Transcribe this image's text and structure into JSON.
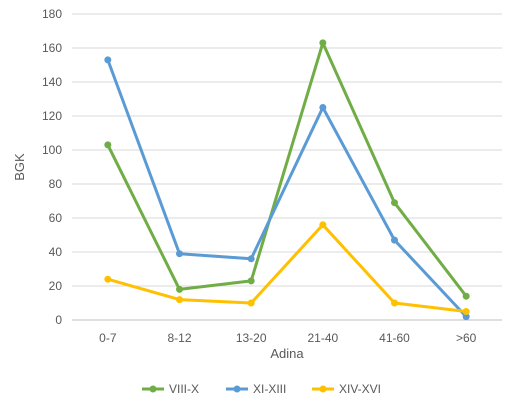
{
  "chart_data": {
    "type": "line",
    "title": "",
    "xlabel": "Adina",
    "ylabel": "BGK",
    "ylim": [
      0,
      180
    ],
    "yticks": [
      0,
      20,
      40,
      60,
      80,
      100,
      120,
      140,
      160,
      180
    ],
    "grid": true,
    "legend_position": "bottom",
    "categories": [
      "0-7",
      "8-12",
      "13-20",
      "21-40",
      "41-60",
      ">60"
    ],
    "series": [
      {
        "name": "VIII-X",
        "color": "#70AD47",
        "values": [
          103,
          18,
          23,
          163,
          69,
          14
        ]
      },
      {
        "name": "XI-XIII",
        "color": "#5B9BD5",
        "values": [
          153,
          39,
          36,
          125,
          47,
          2
        ]
      },
      {
        "name": "XIV-XVI",
        "color": "#FFC000",
        "values": [
          24,
          12,
          10,
          56,
          10,
          5
        ]
      }
    ]
  }
}
